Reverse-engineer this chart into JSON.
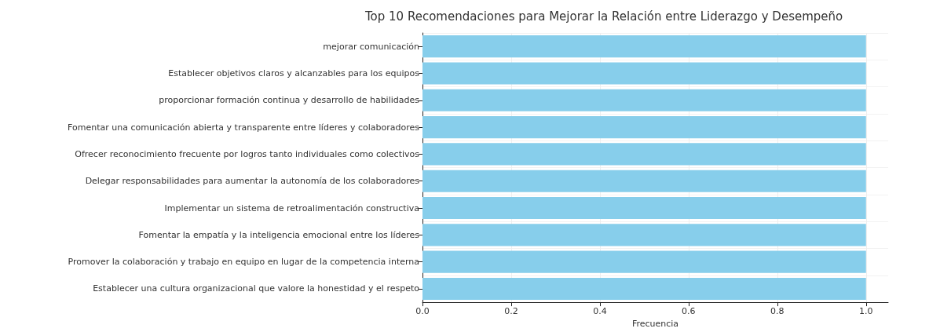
{
  "chart_data": {
    "type": "bar",
    "orientation": "horizontal",
    "title": "Top 10 Recomendaciones para Mejorar la Relación entre Liderazgo y Desempeño",
    "xlabel": "Frecuencia",
    "categories": [
      "mejorar comunicación",
      "Establecer objetivos claros y alcanzables para los equipos",
      "proporcionar formación continua y desarrollo de habilidades",
      "Fomentar una comunicación abierta y transparente entre líderes y colaboradores",
      "Ofrecer reconocimiento frecuente por logros tanto individuales como colectivos",
      "Delegar responsabilidades para aumentar la autonomía de los colaboradores",
      "Implementar un sistema de retroalimentación constructiva",
      "Fomentar la empatía y la inteligencia emocional entre los líderes",
      "Promover la colaboración y trabajo en equipo en lugar de la competencia interna",
      "Establecer una cultura organizacional que valore la honestidad y el respeto"
    ],
    "values": [
      1,
      1,
      1,
      1,
      1,
      1,
      1,
      1,
      1,
      1
    ],
    "color": "#87ceeb",
    "xlim": [
      0,
      1.05
    ],
    "xticks": [
      {
        "value": 0,
        "label": "0.0"
      },
      0.2,
      0.4,
      0.6,
      0.8,
      {
        "value": 1,
        "label": "1.0"
      }
    ],
    "grid": true
  }
}
